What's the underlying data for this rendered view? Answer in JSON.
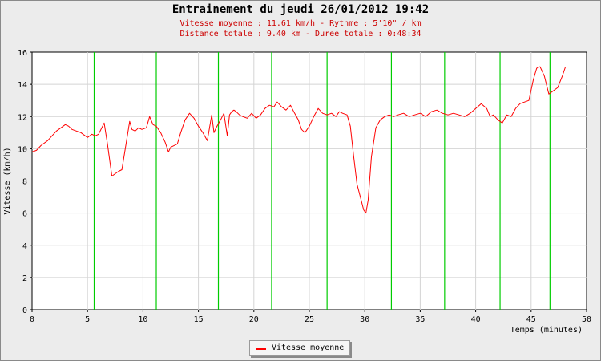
{
  "chart_data": {
    "type": "line",
    "title": "Entrainement du jeudi 26/01/2012 19:42",
    "subtitle_lines": [
      "Vitesse moyenne : 11.61 km/h - Rythme : 5'10\" / km",
      "Distance totale : 9.40 km - Duree totale : 0:48:34"
    ],
    "xlabel": "Temps (minutes)",
    "ylabel": "Vitesse (km/h)",
    "xlim": [
      0,
      50
    ],
    "ylim": [
      0,
      16
    ],
    "xticks": [
      "0",
      "5",
      "10",
      "15",
      "20",
      "25",
      "30",
      "35",
      "40",
      "45",
      "50"
    ],
    "yticks": [
      "0",
      "2",
      "4",
      "6",
      "8",
      "10",
      "12",
      "14",
      "16"
    ],
    "grid": true,
    "legend_position": "bottom-center",
    "lap_markers_x": [
      5.6,
      11.2,
      16.8,
      21.6,
      26.6,
      32.4,
      37.2,
      42.2,
      46.7
    ],
    "lap_marker_color": "#00cc00",
    "series": [
      {
        "name": "Vitesse moyenne",
        "color": "#ff0000",
        "x": [
          0,
          0.4,
          0.8,
          1.0,
          1.4,
          1.8,
          2.2,
          2.6,
          3.0,
          3.3,
          3.6,
          4.0,
          4.4,
          4.8,
          5.0,
          5.4,
          5.7,
          6.0,
          6.5,
          6.8,
          7.2,
          7.4,
          7.8,
          8.1,
          8.4,
          8.8,
          9.0,
          9.3,
          9.6,
          9.9,
          10.3,
          10.6,
          10.9,
          11.2,
          11.6,
          12.0,
          12.3,
          12.5,
          12.8,
          13.1,
          13.4,
          13.8,
          14.2,
          14.6,
          15.0,
          15.4,
          15.8,
          16.2,
          16.4,
          16.6,
          17.0,
          17.3,
          17.6,
          17.8,
          18.0,
          18.2,
          18.4,
          18.7,
          19.0,
          19.4,
          19.8,
          20.2,
          20.6,
          21.0,
          21.4,
          21.8,
          22.1,
          22.5,
          22.9,
          23.3,
          23.6,
          24.0,
          24.3,
          24.6,
          25.0,
          25.4,
          25.8,
          26.2,
          26.6,
          27.0,
          27.4,
          27.7,
          28.0,
          28.4,
          28.7,
          29.0,
          29.3,
          29.6,
          29.9,
          30.1,
          30.3,
          30.6,
          31.0,
          31.4,
          31.8,
          32.2,
          32.6,
          33.0,
          33.5,
          34.0,
          34.5,
          35.0,
          35.5,
          36.0,
          36.5,
          37.0,
          37.5,
          38.0,
          38.5,
          39.0,
          39.5,
          40.0,
          40.5,
          41.0,
          41.3,
          41.6,
          42.0,
          42.4,
          42.8,
          43.2,
          43.6,
          44.0,
          44.4,
          44.8,
          45.2,
          45.5,
          45.8,
          46.2,
          46.6,
          47.0,
          47.4,
          47.8,
          48.1
        ],
        "y": [
          9.8,
          9.9,
          10.2,
          10.3,
          10.5,
          10.8,
          11.1,
          11.3,
          11.5,
          11.4,
          11.2,
          11.1,
          11.0,
          10.8,
          10.7,
          10.9,
          10.8,
          10.9,
          11.6,
          10.3,
          8.3,
          8.4,
          8.6,
          8.7,
          10.0,
          11.7,
          11.2,
          11.1,
          11.3,
          11.2,
          11.3,
          12.0,
          11.5,
          11.4,
          11.0,
          10.4,
          9.8,
          10.1,
          10.2,
          10.3,
          11.0,
          11.8,
          12.2,
          11.9,
          11.4,
          11.0,
          10.5,
          12.1,
          11.0,
          11.3,
          11.8,
          12.2,
          10.8,
          12.1,
          12.3,
          12.4,
          12.3,
          12.1,
          12.0,
          11.9,
          12.2,
          11.9,
          12.1,
          12.5,
          12.7,
          12.6,
          12.9,
          12.6,
          12.4,
          12.7,
          12.3,
          11.8,
          11.2,
          11.0,
          11.4,
          12.0,
          12.5,
          12.2,
          12.1,
          12.2,
          12.0,
          12.3,
          12.2,
          12.1,
          11.4,
          9.5,
          7.8,
          7.0,
          6.2,
          6.0,
          6.8,
          9.5,
          11.3,
          11.8,
          12.0,
          12.1,
          12.0,
          12.1,
          12.2,
          12.0,
          12.1,
          12.2,
          12.0,
          12.3,
          12.4,
          12.2,
          12.1,
          12.2,
          12.1,
          12.0,
          12.2,
          12.5,
          12.8,
          12.5,
          12.0,
          12.1,
          11.8,
          11.6,
          12.1,
          12.0,
          12.5,
          12.8,
          12.9,
          13.0,
          14.3,
          15.0,
          15.1,
          14.5,
          13.4,
          13.6,
          13.8,
          14.5,
          15.1
        ]
      }
    ]
  }
}
